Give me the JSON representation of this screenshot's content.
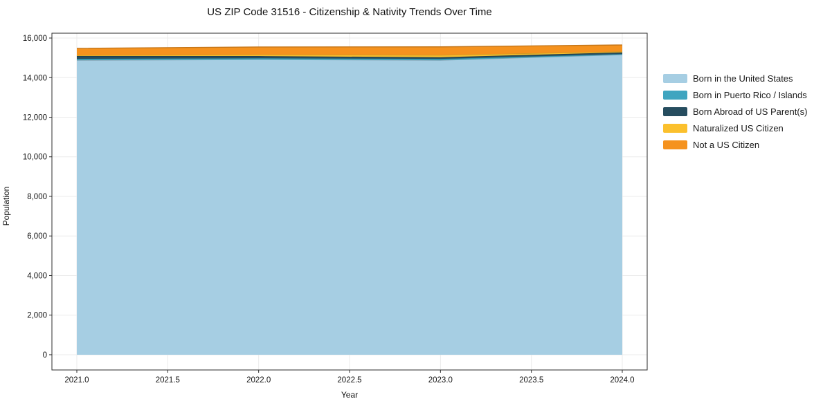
{
  "title": "US ZIP Code 31516 - Citizenship & Nativity Trends Over Time",
  "axes": {
    "x": {
      "label": "Year",
      "ticks": [
        2021.0,
        2021.5,
        2022.0,
        2022.5,
        2023.0,
        2023.5,
        2024.0
      ],
      "tick_labels": [
        "2021.0",
        "2021.5",
        "2022.0",
        "2022.5",
        "2023.0",
        "2023.5",
        "2024.0"
      ],
      "range": [
        2020.863,
        2024.137
      ]
    },
    "y": {
      "label": "Population",
      "ticks": [
        0,
        2000,
        4000,
        6000,
        8000,
        10000,
        12000,
        14000,
        16000
      ],
      "tick_labels": [
        "0",
        "2,000",
        "4,000",
        "6,000",
        "8,000",
        "10,000",
        "12,000",
        "14,000",
        "16,000"
      ],
      "range": [
        -770,
        16245
      ]
    }
  },
  "legend": {
    "position": "right-outside",
    "frame": false
  },
  "chart_data": {
    "type": "area",
    "stacked": true,
    "title": "US ZIP Code 31516 - Citizenship & Nativity Trends Over Time",
    "xlabel": "Year",
    "ylabel": "Population",
    "x": [
      2021,
      2022,
      2023,
      2024
    ],
    "xlim": [
      2020.863,
      2024.137
    ],
    "ylim": [
      -770,
      16245
    ],
    "grid": true,
    "series": [
      {
        "name": "Born in the United States",
        "color": "#a6cee3",
        "values": [
          14880,
          14915,
          14880,
          15160
        ]
      },
      {
        "name": "Born in Puerto Rico / Islands",
        "color": "#3fa5c0",
        "values": [
          70,
          70,
          70,
          35
        ]
      },
      {
        "name": "Born Abroad of US Parent(s)",
        "color": "#264d5f",
        "values": [
          140,
          105,
          80,
          80
        ]
      },
      {
        "name": "Naturalized US Citizen",
        "color": "#fbc02d",
        "values": [
          40,
          75,
          110,
          45
        ]
      },
      {
        "name": "Not a US Citizen",
        "color": "#f5921e",
        "values": [
          350,
          385,
          415,
          330
        ]
      }
    ],
    "totals": [
      15480,
      15550,
      15555,
      15650
    ]
  },
  "colors": {
    "grid": "#ebebeb",
    "spine": "#2b2b2b",
    "background": "#ffffff"
  }
}
